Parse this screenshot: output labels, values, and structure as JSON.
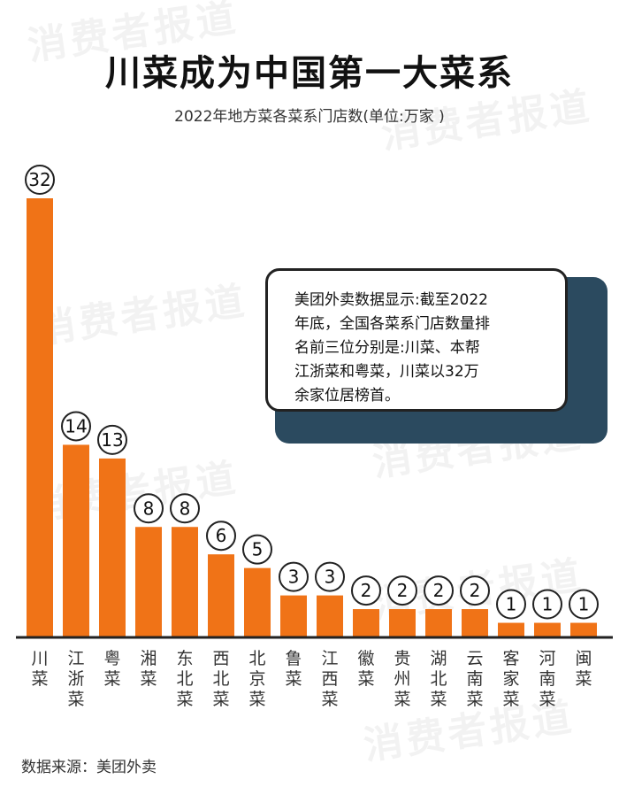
{
  "header": {
    "title": "川菜成为中国第一大菜系",
    "subtitle": "2022年地方菜各菜系门店数(单位:万家 )"
  },
  "callout": {
    "lines": [
      "美团外卖数据显示:截至2022",
      "年底，全国各菜系门店数量排",
      "名前三位分别是:川菜、本帮",
      "江浙菜和粤菜，川菜以32万",
      "余家位居榜首。"
    ]
  },
  "footer": {
    "source": "数据来源：美团外卖"
  },
  "watermark": "消费者报道",
  "colors": {
    "bar": "#f07317",
    "axis": "#222222",
    "callout_shadow": "#2b4a5f"
  },
  "chart_data": {
    "type": "bar",
    "title": "川菜成为中国第一大菜系",
    "subtitle": "2022年地方菜各菜系门店数(单位:万家 )",
    "categories": [
      "川菜",
      "江浙菜",
      "粤菜",
      "湘菜",
      "东北菜",
      "西北菜",
      "北京菜",
      "鲁菜",
      "江西菜",
      "徽菜",
      "贵州菜",
      "湖北菜",
      "云南菜",
      "客家菜",
      "河南菜",
      "闽菜"
    ],
    "values": [
      32,
      14,
      13,
      8,
      8,
      6,
      5,
      3,
      3,
      2,
      2,
      2,
      2,
      1,
      1,
      1
    ],
    "ylim": [
      0,
      32
    ],
    "grid": false,
    "legend": "none",
    "data_labels": "circled above bars"
  }
}
